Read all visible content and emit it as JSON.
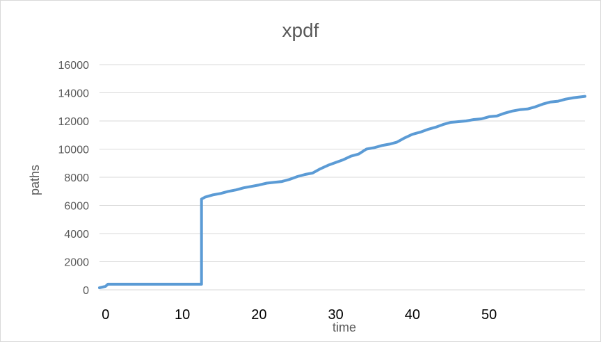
{
  "chart_data": {
    "type": "line",
    "title": "xpdf",
    "xlabel": "time",
    "ylabel": "paths",
    "xlim": [
      -0.8,
      62.5
    ],
    "ylim": [
      0,
      16000
    ],
    "yticks": [
      0,
      2000,
      4000,
      6000,
      8000,
      10000,
      12000,
      14000,
      16000
    ],
    "xticks": [
      0,
      10,
      20,
      30,
      40,
      50
    ],
    "grid": true,
    "legend": "none",
    "colors": {
      "series": "#5b9bd5",
      "grid": "#d9d9d9",
      "text": "#595959"
    },
    "series": [
      {
        "x": [
          -0.8,
          0.0,
          0.3,
          2,
          5,
          8,
          11,
          12.5,
          12.5,
          13,
          14,
          15,
          16,
          17,
          18,
          19,
          20,
          21,
          22,
          23,
          24,
          25,
          26,
          27,
          28,
          29,
          30,
          31,
          32,
          33,
          34,
          35,
          36,
          37,
          38,
          39,
          40,
          41,
          42,
          43,
          44,
          45,
          46,
          47,
          48,
          49,
          50,
          51,
          52,
          53,
          54,
          55,
          56,
          57,
          58,
          59,
          60,
          61,
          62.5
        ],
        "y": [
          150,
          250,
          400,
          400,
          400,
          400,
          400,
          400,
          6450,
          6600,
          6750,
          6850,
          7000,
          7100,
          7250,
          7350,
          7450,
          7580,
          7640,
          7700,
          7850,
          8050,
          8200,
          8300,
          8600,
          8850,
          9050,
          9250,
          9500,
          9650,
          10000,
          10100,
          10250,
          10350,
          10500,
          10800,
          11050,
          11200,
          11400,
          11550,
          11750,
          11900,
          11950,
          12000,
          12100,
          12150,
          12300,
          12350,
          12550,
          12700,
          12800,
          12850,
          13000,
          13200,
          13350,
          13400,
          13550,
          13650,
          13750
        ]
      }
    ]
  }
}
